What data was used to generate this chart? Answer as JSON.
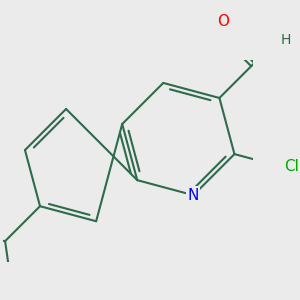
{
  "bg_color": "#ebebeb",
  "bond_color": "#2d6b4a",
  "bond_width": 1.5,
  "atom_colors": {
    "N": "#0000ff",
    "O": "#ff0000",
    "Cl": "#00aa00",
    "C": "#2d6b4a",
    "H": "#2d6b4a"
  },
  "font_size_atom": 11,
  "font_size_H": 10
}
